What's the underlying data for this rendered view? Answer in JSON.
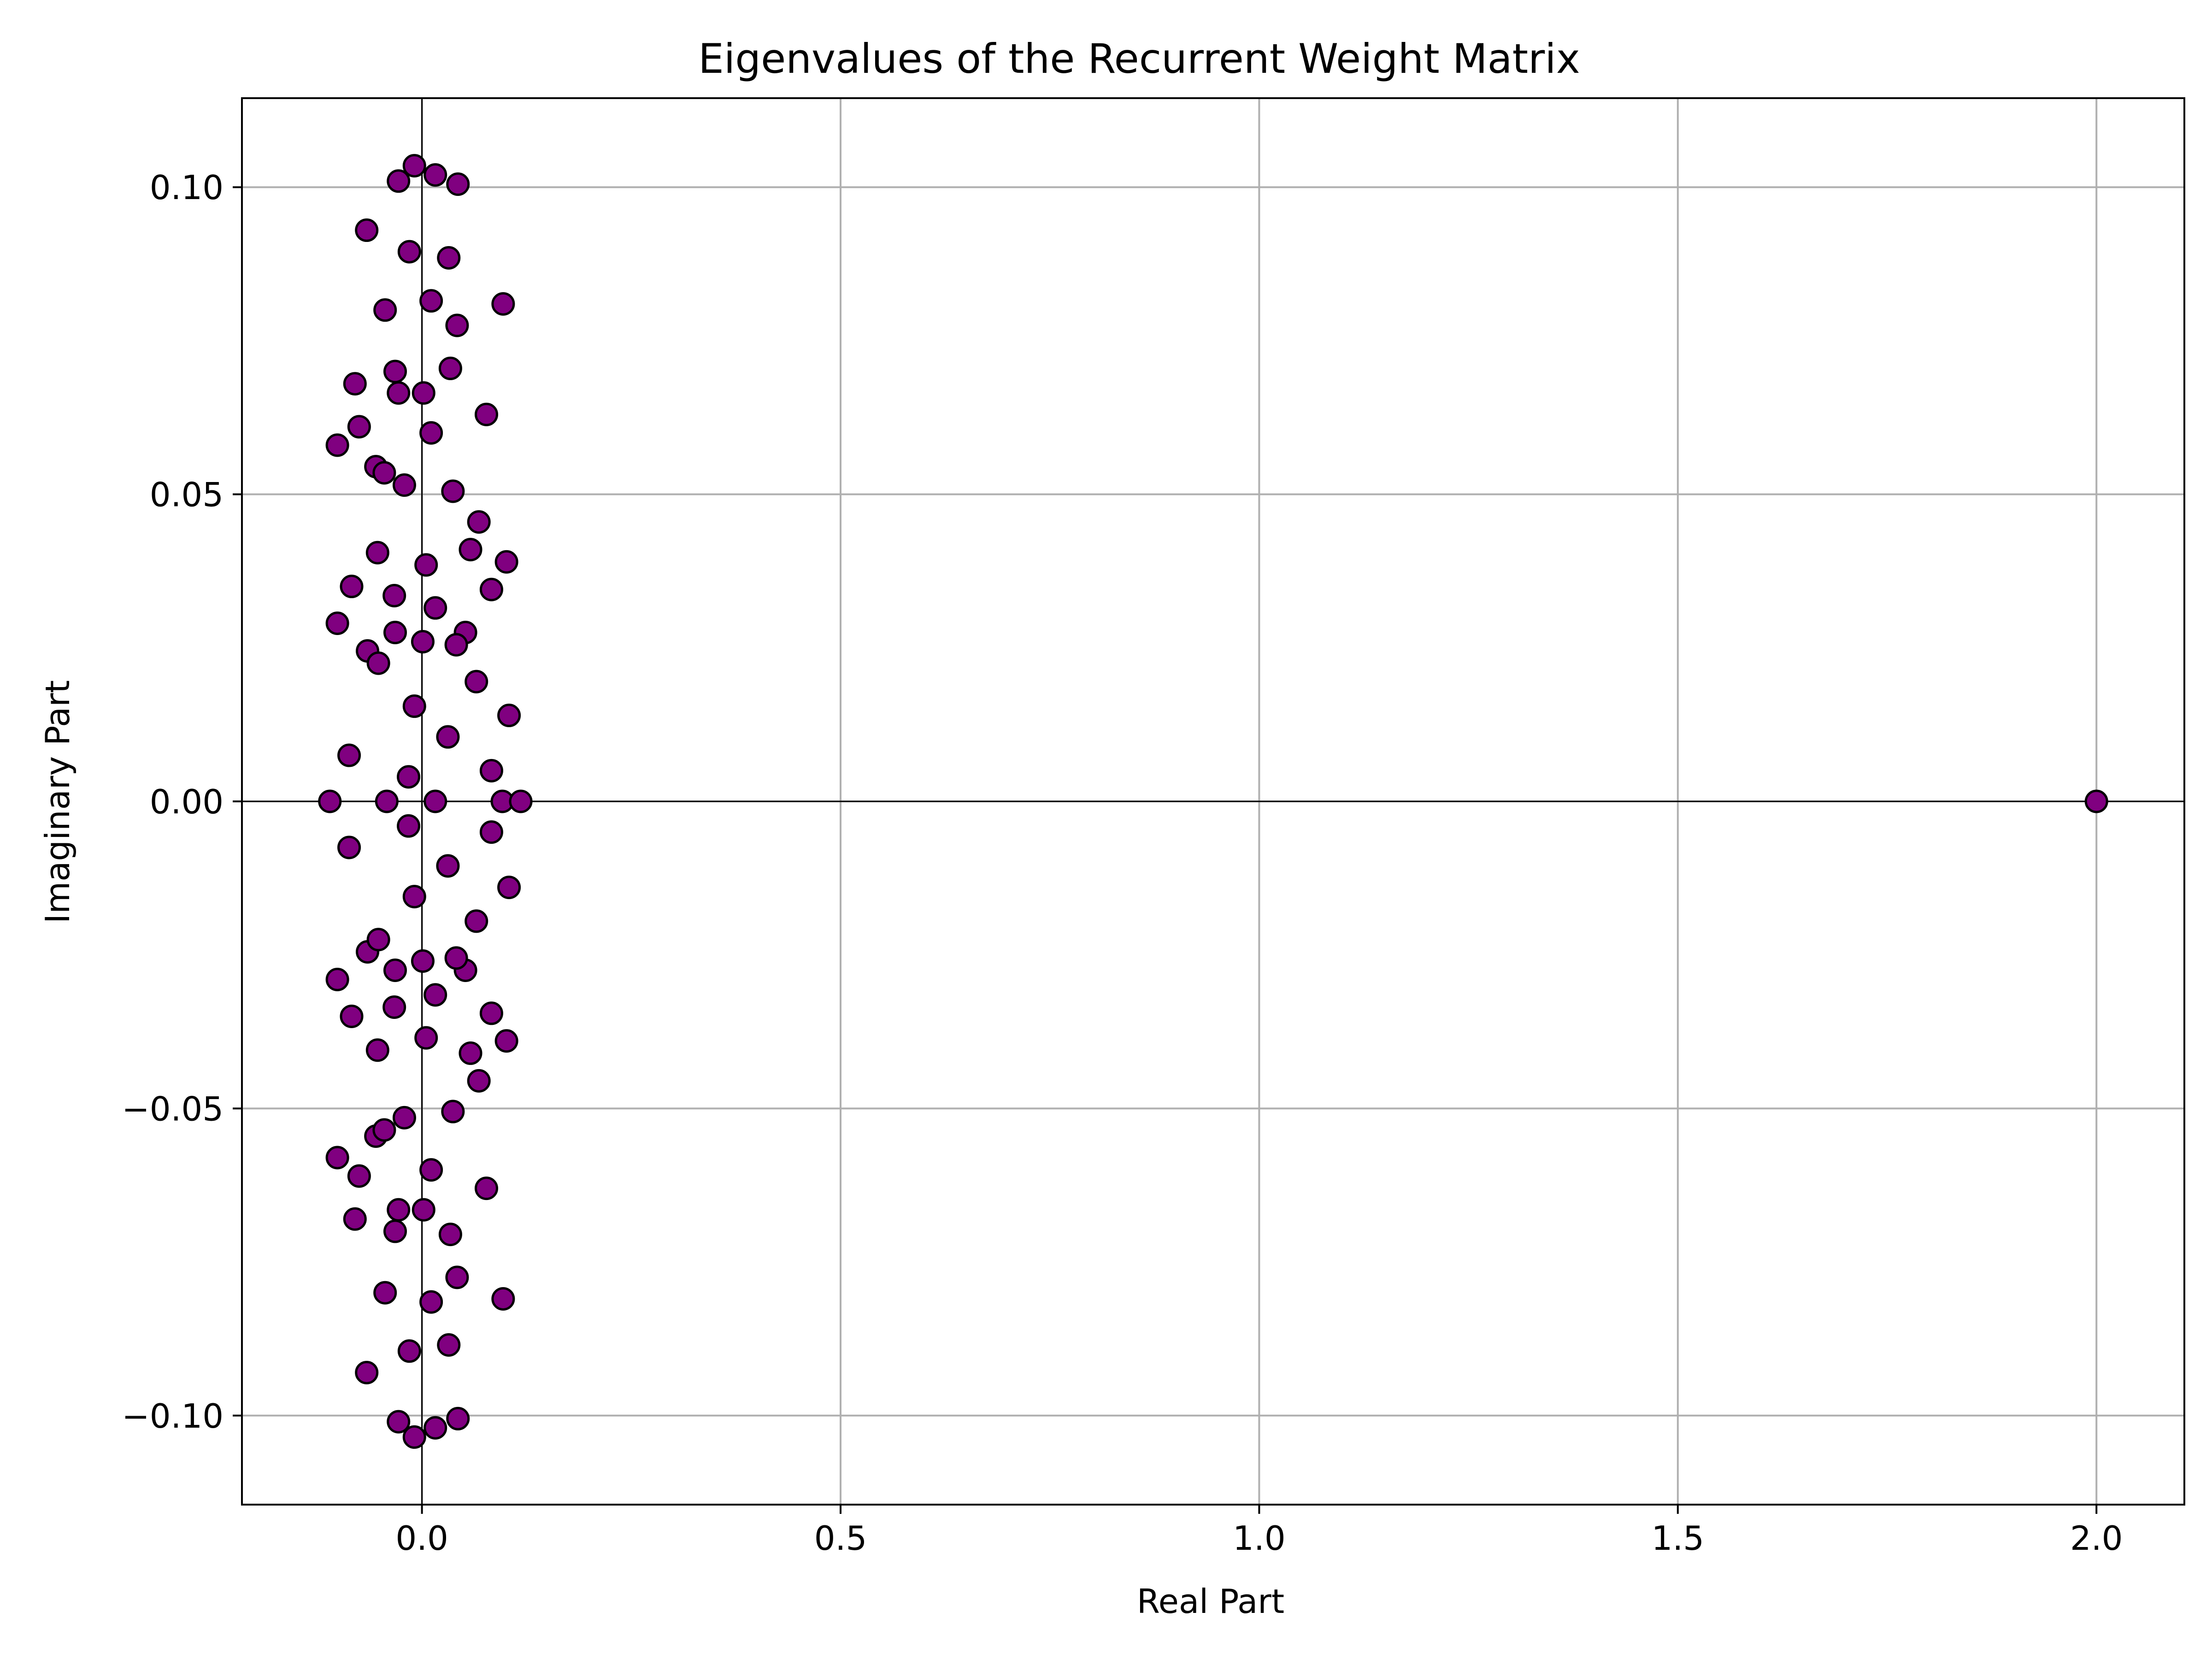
{
  "chart_data": {
    "type": "scatter",
    "title": "Eigenvalues of the Recurrent Weight Matrix",
    "xlabel": "Real Part",
    "ylabel": "Imaginary Part",
    "xlim": [
      -0.215,
      2.105
    ],
    "ylim": [
      -0.1145,
      0.1145
    ],
    "xticks": [
      {
        "value": 0.0,
        "label": "0.0"
      },
      {
        "value": 0.5,
        "label": "0.5"
      },
      {
        "value": 1.0,
        "label": "1.0"
      },
      {
        "value": 1.5,
        "label": "1.5"
      },
      {
        "value": 2.0,
        "label": "2.0"
      }
    ],
    "yticks": [
      {
        "value": -0.1,
        "label": "−0.10"
      },
      {
        "value": -0.05,
        "label": "−0.05"
      },
      {
        "value": 0.0,
        "label": "0.00"
      },
      {
        "value": 0.05,
        "label": "0.05"
      },
      {
        "value": 0.1,
        "label": "0.10"
      }
    ],
    "grid": true,
    "reference_lines": {
      "x": 0,
      "y": 0
    },
    "marker_color": "#800080",
    "marker_edge_color": "#000000",
    "grid_color": "#b0b0b0",
    "series": [
      {
        "x": [
          2.0,
          -0.11,
          -0.042,
          0.016,
          0.096,
          0.118,
          -0.009,
          0.016,
          0.043,
          -0.028,
          -0.015,
          0.032,
          -0.066,
          0.097,
          0.011,
          -0.044,
          0.042,
          0.034,
          -0.032,
          -0.028,
          0.002,
          -0.08,
          0.077,
          -0.075,
          0.011,
          -0.101,
          -0.055,
          -0.045,
          -0.021,
          0.037,
          0.068,
          -0.053,
          0.058,
          0.101,
          -0.084,
          0.083,
          -0.033,
          0.005,
          0.016,
          -0.101,
          -0.032,
          0.052,
          -0.065,
          0.001,
          0.041,
          -0.052,
          0.065,
          -0.009,
          0.104,
          0.031,
          -0.087,
          0.083,
          -0.016
        ],
        "y": [
          0.0,
          0.0,
          0.0,
          0.0,
          0.0,
          0.0,
          0.1035,
          0.102,
          0.1005,
          0.101,
          0.0895,
          0.0885,
          0.093,
          0.081,
          0.0815,
          0.08,
          0.0775,
          0.0705,
          0.07,
          0.0665,
          0.0665,
          0.068,
          0.063,
          0.061,
          0.06,
          0.058,
          0.0545,
          0.0535,
          0.0515,
          0.0505,
          0.0455,
          0.0405,
          0.041,
          0.039,
          0.035,
          0.0345,
          0.0335,
          0.0385,
          0.0315,
          0.029,
          0.0275,
          0.0275,
          0.0245,
          0.026,
          0.0255,
          0.0225,
          0.0195,
          0.0155,
          0.014,
          0.0105,
          0.0075,
          0.005,
          0.004
        ],
        "mirrored_conjugates": true
      }
    ]
  }
}
